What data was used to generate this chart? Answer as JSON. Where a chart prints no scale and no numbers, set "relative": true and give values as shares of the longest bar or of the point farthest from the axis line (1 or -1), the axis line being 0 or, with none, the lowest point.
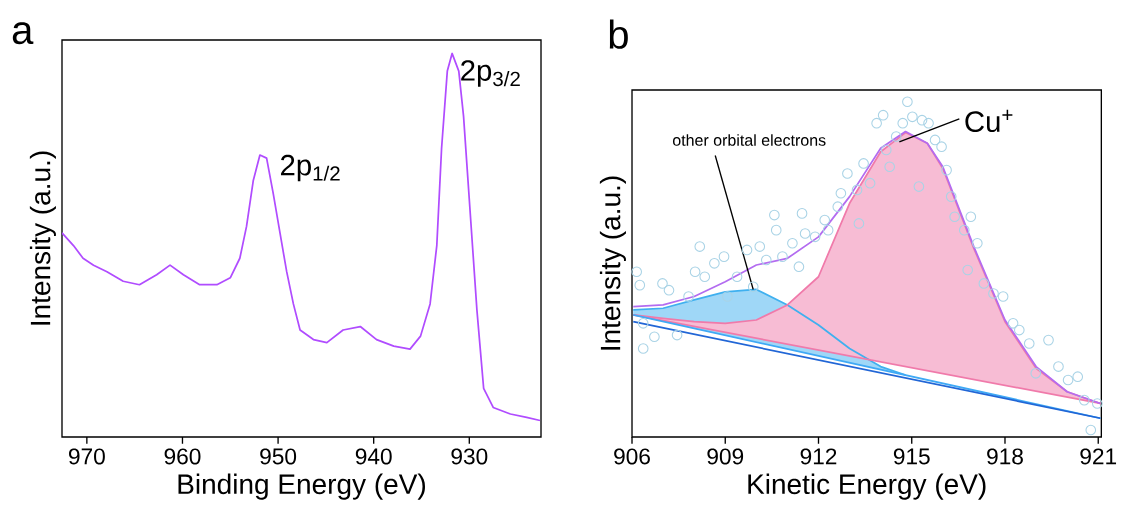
{
  "chart_data": [
    {
      "type": "line",
      "title": "a",
      "xlabel": "Binding Energy (eV)",
      "ylabel": "Intensity (a.u.)",
      "relative": true,
      "xlim": [
        972.6,
        922.5
      ],
      "xticks": [
        970,
        960,
        950,
        940,
        930
      ],
      "series": [
        {
          "color": "#b04cff",
          "x": [
            972.6,
            971.4,
            970.4,
            969.3,
            967.9,
            966.2,
            964.5,
            962.7,
            961.3,
            959.9,
            958.2,
            956.4,
            955.0,
            954.0,
            953.3,
            952.6,
            951.9,
            951.2,
            950.5,
            949.8,
            949.1,
            948.4,
            947.7,
            946.3,
            944.9,
            943.2,
            941.4,
            939.7,
            937.9,
            936.2,
            935.1,
            934.1,
            933.4,
            932.9,
            932.3,
            931.8,
            931.1,
            930.6,
            929.9,
            929.2,
            928.5,
            927.5,
            925.7,
            924.0,
            922.6
          ],
          "values": [
            0.532,
            0.499,
            0.466,
            0.448,
            0.431,
            0.406,
            0.397,
            0.423,
            0.448,
            0.423,
            0.397,
            0.397,
            0.415,
            0.466,
            0.549,
            0.668,
            0.735,
            0.727,
            0.634,
            0.532,
            0.431,
            0.347,
            0.279,
            0.254,
            0.246,
            0.279,
            0.288,
            0.254,
            0.237,
            0.229,
            0.263,
            0.347,
            0.499,
            0.752,
            0.954,
            1.0,
            0.954,
            0.836,
            0.583,
            0.33,
            0.127,
            0.077,
            0.06,
            0.051,
            0.043
          ]
        }
      ],
      "annotations": [
        {
          "text": "2p$_{1/2}$",
          "x": 951.9,
          "y": 0.735
        },
        {
          "text": "2p$_{3/2}$",
          "x": 931.8,
          "y": 1.0
        }
      ]
    },
    {
      "type": "line",
      "title": "b",
      "xlabel": "Kinetic Energy (eV)",
      "ylabel": "Intensity (a.u.)",
      "relative": true,
      "xlim": [
        906,
        921.1
      ],
      "xticks": [
        906,
        909,
        912,
        915,
        918,
        921
      ],
      "series": [
        {
          "color": "#3fb0ef",
          "x": [
            906.04,
            907,
            908,
            909,
            910,
            911,
            912,
            913,
            914,
            914.8
          ],
          "values": [
            0.379,
            0.384,
            0.409,
            0.433,
            0.44,
            0.394,
            0.334,
            0.264,
            0.21,
            0.185
          ],
          "lower": [
            0.364,
            0.344,
            0.324,
            0.303,
            0.282,
            0.262,
            0.242,
            0.221,
            0.201,
            0.184
          ],
          "upper": [
            0.379,
            0.384,
            0.409,
            0.433,
            0.44,
            0.394,
            0.334,
            0.264,
            0.21,
            0.185
          ]
        },
        {
          "color": "#f07aaa",
          "x": [
            906.04,
            907,
            908,
            909,
            910,
            911,
            912,
            913,
            914,
            914.8,
            915.5,
            916,
            917,
            918,
            919,
            920,
            921.07
          ],
          "values": [
            0.364,
            0.354,
            0.344,
            0.339,
            0.349,
            0.394,
            0.478,
            0.697,
            0.851,
            0.908,
            0.876,
            0.801,
            0.562,
            0.344,
            0.205,
            0.135,
            0.1
          ],
          "lower": [
            0.364,
            0.347,
            0.329,
            0.312,
            0.294,
            0.277,
            0.26,
            0.242,
            0.225,
            0.211,
            0.198,
            0.189,
            0.172,
            0.154,
            0.137,
            0.119,
            0.1
          ],
          "upper": [
            0.364,
            0.354,
            0.344,
            0.339,
            0.349,
            0.394,
            0.478,
            0.697,
            0.851,
            0.908,
            0.876,
            0.801,
            0.562,
            0.344,
            0.205,
            0.135,
            0.1
          ]
        },
        {
          "color": "#f07aaa",
          "x": [
            906.04,
            921.07
          ],
          "values": [
            0.364,
            0.1
          ]
        },
        {
          "color": "#3fa9f5",
          "x": [
            906.04,
            921.07
          ],
          "values": [
            0.364,
            0.056
          ]
        },
        {
          "color": "#2166d6",
          "x": [
            906.04,
            921.07
          ],
          "values": [
            0.344,
            0.056
          ]
        },
        {
          "color": "#b36cf0",
          "x": [
            906.04,
            907,
            908,
            909,
            910,
            911,
            912,
            913,
            914,
            914.8,
            915.5,
            916,
            917,
            918,
            919,
            920,
            921.07
          ],
          "values": [
            0.389,
            0.394,
            0.419,
            0.463,
            0.513,
            0.533,
            0.597,
            0.717,
            0.861,
            0.911,
            0.876,
            0.806,
            0.567,
            0.349,
            0.21,
            0.135,
            0.1
          ]
        },
        {
          "type": "scatter",
          "color": "#a9d3e6",
          "marker": "circle",
          "x": [
            906.15,
            906.25,
            906.36,
            906.36,
            906.72,
            906.98,
            907.19,
            907.45,
            907.82,
            908.03,
            908.18,
            908.34,
            908.65,
            908.96,
            909.07,
            909.38,
            909.7,
            909.9,
            910.11,
            910.32,
            910.58,
            910.64,
            910.84,
            911.16,
            911.37,
            911.47,
            911.57,
            911.89,
            912.2,
            912.31,
            912.62,
            912.72,
            912.93,
            913.24,
            913.3,
            913.45,
            913.66,
            913.87,
            914.08,
            914.18,
            914.29,
            914.5,
            914.71,
            914.86,
            915.02,
            915.23,
            915.33,
            915.54,
            915.75,
            915.96,
            916.12,
            916.27,
            916.38,
            916.69,
            916.8,
            916.9,
            917.11,
            917.32,
            917.63,
            917.94,
            918.26,
            918.46,
            918.78,
            918.99,
            919.4,
            919.72,
            920.03,
            920.34,
            920.55,
            920.76,
            920.97
          ],
          "values": [
            0.493,
            0.453,
            0.339,
            0.264,
            0.299,
            0.458,
            0.438,
            0.304,
            0.419,
            0.493,
            0.568,
            0.478,
            0.518,
            0.538,
            0.419,
            0.478,
            0.558,
            0.448,
            0.568,
            0.528,
            0.662,
            0.617,
            0.538,
            0.578,
            0.508,
            0.667,
            0.607,
            0.597,
            0.647,
            0.617,
            0.687,
            0.727,
            0.786,
            0.737,
            0.637,
            0.816,
            0.757,
            0.936,
            0.96,
            0.856,
            0.806,
            0.896,
            0.936,
            1.0,
            0.955,
            0.747,
            0.945,
            0.936,
            0.886,
            0.866,
            0.796,
            0.717,
            0.657,
            0.617,
            0.498,
            0.657,
            0.578,
            0.458,
            0.428,
            0.419,
            0.339,
            0.319,
            0.279,
            0.19,
            0.289,
            0.21,
            0.17,
            0.18,
            0.11,
            0.021,
            0.1
          ]
        }
      ],
      "annotations": [
        {
          "text": "other orbital electrons",
          "x": 909.9,
          "y": 0.44
        },
        {
          "text": "Cu$^{+}$",
          "x": 914.6,
          "y": 0.88
        }
      ]
    }
  ]
}
